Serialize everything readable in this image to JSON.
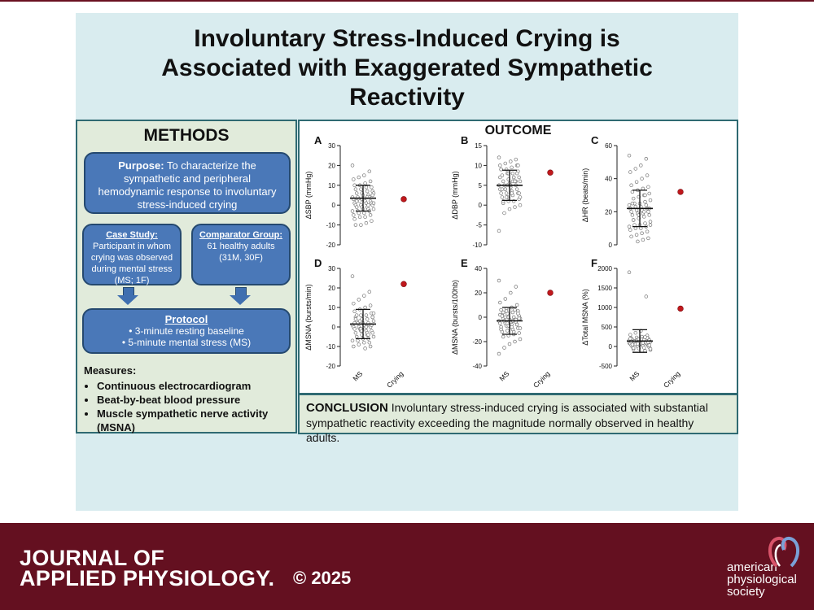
{
  "title_lines": [
    "Involuntary Stress-Induced Crying is",
    "Associated with Exaggerated Sympathetic",
    "Reactivity"
  ],
  "methods": {
    "heading": "METHODS",
    "purpose_label": "Purpose:",
    "purpose_text": " To characterize the sympathetic and peripheral hemodynamic response to involuntary stress-induced crying",
    "case_title": "Case Study:",
    "case_text": "Participant in whom crying was observed during mental stress (MS; 1F)",
    "comp_title": "Comparator Group:",
    "comp_text": "61 healthy adults (31M, 30F)",
    "protocol_title": "Protocol",
    "protocol_items": [
      "3-minute resting baseline",
      "5-minute mental stress (MS)"
    ],
    "measures_title": "Measures:",
    "measures_items": [
      "Continuous electrocardiogram",
      "Beat-by-beat blood pressure",
      "Muscle sympathetic nerve activity (MSNA)"
    ]
  },
  "outcome_heading": "OUTCOME",
  "conclusion": {
    "label": "CONCLUSION",
    "text": " Involuntary stress-induced crying is associated with substantial sympathetic reactivity exceeding the magnitude normally observed in healthy adults."
  },
  "footer": {
    "journal_line1": "JOURNAL OF",
    "journal_line2": "APPLIED PHYSIOLOGY.",
    "copyright": "© 2025",
    "society": [
      "american",
      "physiological",
      "society"
    ]
  },
  "colors": {
    "crying_point": "#c0181c",
    "footer": "#641020",
    "box": "#4a78b8"
  },
  "chart_data": [
    {
      "panel": "A",
      "type": "scatter",
      "ylabel": "ΔSBP (mmHg)",
      "ylim": [
        -20,
        30
      ],
      "yticks": [
        -20,
        -10,
        0,
        10,
        20,
        30
      ],
      "categories": [
        "MS",
        "Crying"
      ],
      "ms_mean": 3.5,
      "ms_sd": 6.5,
      "crying": 3,
      "ms_points": [
        20,
        17,
        15,
        14,
        13,
        12,
        11,
        10,
        10,
        9,
        9,
        8,
        8,
        7,
        7,
        6,
        6,
        6,
        5,
        5,
        4,
        4,
        4,
        3,
        3,
        3,
        2,
        2,
        2,
        1,
        1,
        1,
        0,
        0,
        0,
        -1,
        -1,
        -1,
        -2,
        -2,
        -2,
        -3,
        -3,
        -3,
        -4,
        -4,
        -5,
        -5,
        -6,
        -6,
        -7,
        -8,
        -9,
        -10,
        -10,
        5,
        4,
        3,
        2,
        1,
        0
      ],
      "show_xlabels": false
    },
    {
      "panel": "B",
      "type": "scatter",
      "ylabel": "ΔDBP (mmHg)",
      "ylim": [
        -10,
        15
      ],
      "yticks": [
        -10,
        -5,
        0,
        5,
        10,
        15
      ],
      "categories": [
        "MS",
        "Crying"
      ],
      "ms_mean": 5,
      "ms_sd": 3.8,
      "crying": 8.2,
      "ms_points": [
        12,
        11.5,
        11,
        10.5,
        10,
        10,
        9.5,
        9,
        9,
        8.5,
        8,
        8,
        7.5,
        7,
        7,
        6.5,
        6,
        6,
        6,
        5.5,
        5,
        5,
        5,
        4.5,
        4,
        4,
        4,
        3.5,
        3,
        3,
        3,
        2.5,
        2,
        2,
        1.5,
        1,
        1,
        0.5,
        0,
        -0.5,
        -1,
        -2,
        -6.5,
        6,
        5,
        4,
        7,
        8,
        3,
        2,
        9,
        10,
        6,
        5,
        4,
        3,
        7,
        8,
        1,
        2,
        6
      ],
      "show_xlabels": false
    },
    {
      "panel": "C",
      "type": "scatter",
      "ylabel": "ΔHR (beats/min)",
      "ylim": [
        0,
        60
      ],
      "yticks": [
        0,
        20,
        40,
        60
      ],
      "categories": [
        "MS",
        "Crying"
      ],
      "ms_mean": 22,
      "ms_sd": 11,
      "crying": 32,
      "ms_points": [
        54,
        52,
        48,
        46,
        44,
        42,
        40,
        38,
        36,
        35,
        34,
        33,
        32,
        31,
        30,
        29,
        28,
        27,
        26,
        25,
        25,
        24,
        24,
        23,
        23,
        22,
        22,
        21,
        21,
        20,
        20,
        19,
        19,
        18,
        18,
        17,
        16,
        15,
        14,
        13,
        12,
        12,
        11,
        11,
        10,
        10,
        9,
        8,
        7,
        6,
        5,
        4,
        3,
        2,
        25,
        22,
        20,
        18,
        15,
        12,
        30
      ],
      "show_xlabels": false
    },
    {
      "panel": "D",
      "type": "scatter",
      "ylabel": "ΔMSNA (bursts/min)",
      "ylim": [
        -20,
        30
      ],
      "yticks": [
        -20,
        -10,
        0,
        10,
        20,
        30
      ],
      "categories": [
        "MS",
        "Crying"
      ],
      "ms_mean": 1.5,
      "ms_sd": 7.5,
      "crying": 22,
      "ms_points": [
        26,
        18,
        16,
        14,
        12,
        11,
        10,
        9,
        8,
        7,
        6,
        6,
        5,
        5,
        4,
        4,
        3,
        3,
        2,
        2,
        2,
        1,
        1,
        1,
        0,
        0,
        0,
        -1,
        -1,
        -1,
        -2,
        -2,
        -2,
        -3,
        -3,
        -4,
        -4,
        -5,
        -5,
        -6,
        -6,
        -7,
        -7,
        -8,
        -8,
        -9,
        -10,
        -10,
        -11,
        3,
        2,
        1,
        0,
        -1,
        4,
        5,
        -3,
        -2,
        6,
        7,
        -4
      ],
      "show_xlabels": true
    },
    {
      "panel": "E",
      "type": "scatter",
      "ylabel": "ΔMSNA (bursts/100hb)",
      "ylim": [
        -40,
        40
      ],
      "yticks": [
        -40,
        -20,
        0,
        20,
        40
      ],
      "categories": [
        "MS",
        "Crying"
      ],
      "ms_mean": -3,
      "ms_sd": 11,
      "crying": 20,
      "ms_points": [
        30,
        25,
        20,
        15,
        12,
        10,
        8,
        7,
        6,
        5,
        4,
        3,
        2,
        1,
        0,
        0,
        -1,
        -1,
        -2,
        -2,
        -3,
        -3,
        -4,
        -4,
        -5,
        -5,
        -6,
        -6,
        -7,
        -8,
        -9,
        -10,
        -11,
        -12,
        -13,
        -14,
        -15,
        -16,
        -18,
        -20,
        -22,
        -25,
        -30,
        -2,
        -4,
        0,
        2,
        -6,
        -8,
        5,
        -10,
        3,
        -3,
        -5,
        1,
        -1,
        -12,
        -7,
        4,
        -9,
        6
      ],
      "show_xlabels": true
    },
    {
      "panel": "F",
      "type": "scatter",
      "ylabel": "ΔTotal MSNA (%)",
      "ylim": [
        -500,
        2000
      ],
      "yticks": [
        -500,
        0,
        500,
        1000,
        1500,
        2000
      ],
      "categories": [
        "MS",
        "Crying"
      ],
      "ms_mean": 140,
      "ms_sd": 290,
      "crying": 970,
      "ms_points": [
        1900,
        1280,
        400,
        350,
        300,
        280,
        250,
        230,
        210,
        200,
        190,
        180,
        170,
        160,
        150,
        140,
        130,
        120,
        110,
        100,
        95,
        90,
        85,
        80,
        75,
        70,
        60,
        50,
        40,
        30,
        20,
        10,
        0,
        -10,
        -20,
        -30,
        -50,
        -70,
        -90,
        -110,
        120,
        140,
        160,
        100,
        80,
        60,
        200,
        220,
        180,
        150,
        130,
        110,
        90,
        70,
        50,
        30,
        170,
        190,
        -40,
        -60,
        240
      ],
      "show_xlabels": true
    }
  ]
}
